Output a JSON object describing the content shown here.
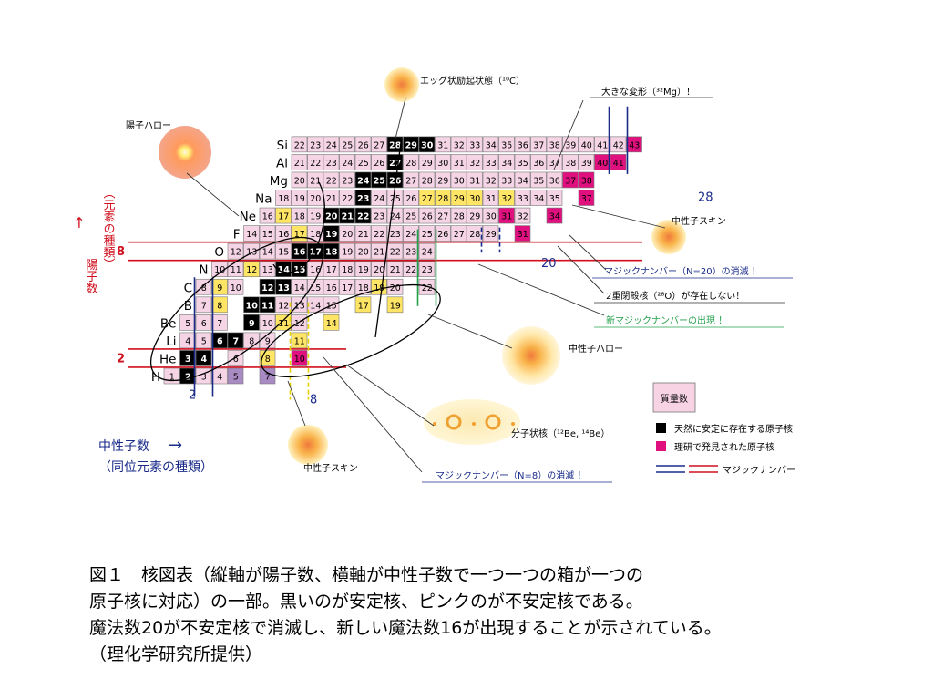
{
  "axes": {
    "proton": {
      "label_line1": "陽子数",
      "label_arrow": "→",
      "label_line2": "（元素の種類）"
    },
    "neutron": {
      "label_line1": "中性子数",
      "label_arrow": "→",
      "label_line2": "（同位元素の種類）"
    }
  },
  "elements": [
    {
      "symbol": "H",
      "z": 1,
      "cells": [
        {
          "n": 0,
          "label": "1",
          "s": "pink"
        },
        {
          "n": 1,
          "label": "2",
          "s": "black"
        },
        {
          "n": 2,
          "label": "3",
          "s": "pink"
        },
        {
          "n": 3,
          "label": "4",
          "s": "pink"
        },
        {
          "n": 4,
          "label": "5",
          "s": "purple"
        },
        {
          "n": 6,
          "label": "7",
          "s": "purple"
        }
      ]
    },
    {
      "symbol": "He",
      "z": 2,
      "cells": [
        {
          "n": 1,
          "label": "3",
          "s": "black"
        },
        {
          "n": 2,
          "label": "4",
          "s": "black"
        },
        {
          "n": 4,
          "label": "6",
          "s": "pink"
        },
        {
          "n": 6,
          "label": "8",
          "s": "yellow"
        },
        {
          "n": 8,
          "label": "10",
          "s": "magenta"
        }
      ]
    },
    {
      "symbol": "Li",
      "z": 3,
      "cells": [
        {
          "n": 1,
          "label": "4",
          "s": "pink"
        },
        {
          "n": 2,
          "label": "5",
          "s": "pink"
        },
        {
          "n": 3,
          "label": "6",
          "s": "black"
        },
        {
          "n": 4,
          "label": "7",
          "s": "black"
        },
        {
          "n": 5,
          "label": "8",
          "s": "pink"
        },
        {
          "n": 6,
          "label": "9",
          "s": "pink"
        },
        {
          "n": 8,
          "label": "11",
          "s": "yellow"
        }
      ]
    },
    {
      "symbol": "Be",
      "z": 4,
      "cells": [
        {
          "n": 1,
          "label": "5",
          "s": "pink"
        },
        {
          "n": 2,
          "label": "6",
          "s": "pink"
        },
        {
          "n": 3,
          "label": "7",
          "s": "pink"
        },
        {
          "n": 5,
          "label": "9",
          "s": "black"
        },
        {
          "n": 6,
          "label": "10",
          "s": "pink"
        },
        {
          "n": 7,
          "label": "11",
          "s": "yellow"
        },
        {
          "n": 8,
          "label": "12",
          "s": "pink"
        },
        {
          "n": 10,
          "label": "14",
          "s": "yellow"
        }
      ]
    },
    {
      "symbol": "B",
      "z": 5,
      "cells": [
        {
          "n": 2,
          "label": "7",
          "s": "pink"
        },
        {
          "n": 3,
          "label": "8",
          "s": "yellow"
        },
        {
          "n": 5,
          "label": "10",
          "s": "black"
        },
        {
          "n": 6,
          "label": "11",
          "s": "black"
        },
        {
          "n": 7,
          "label": "12",
          "s": "pink"
        },
        {
          "n": 8,
          "label": "13",
          "s": "pink"
        },
        {
          "n": 9,
          "label": "14",
          "s": "pink"
        },
        {
          "n": 10,
          "label": "15",
          "s": "pink"
        },
        {
          "n": 12,
          "label": "17",
          "s": "yellow"
        },
        {
          "n": 14,
          "label": "19",
          "s": "yellow"
        }
      ]
    },
    {
      "symbol": "C",
      "z": 6,
      "cells": [
        {
          "n": 2,
          "label": "8",
          "s": "pink"
        },
        {
          "n": 3,
          "label": "9",
          "s": "yellow"
        },
        {
          "n": 4,
          "label": "10",
          "s": "pink"
        },
        {
          "n": 6,
          "label": "12",
          "s": "black"
        },
        {
          "n": 7,
          "label": "13",
          "s": "black"
        },
        {
          "n": 8,
          "label": "14",
          "s": "pink"
        },
        {
          "n": 9,
          "label": "15",
          "s": "pink"
        },
        {
          "n": 10,
          "label": "16",
          "s": "pink"
        },
        {
          "n": 11,
          "label": "17",
          "s": "pink"
        },
        {
          "n": 12,
          "label": "18",
          "s": "pink"
        },
        {
          "n": 13,
          "label": "19",
          "s": "yellow"
        },
        {
          "n": 14,
          "label": "20",
          "s": "pink"
        },
        {
          "n": 16,
          "label": "22",
          "s": "pink"
        }
      ]
    },
    {
      "symbol": "N",
      "z": 7,
      "cells": [
        {
          "n": 3,
          "label": "10",
          "s": "pink"
        },
        {
          "n": 4,
          "label": "11",
          "s": "pink"
        },
        {
          "n": 5,
          "label": "12",
          "s": "yellow"
        },
        {
          "n": 6,
          "label": "13",
          "s": "pink"
        },
        {
          "n": 7,
          "label": "14",
          "s": "black"
        },
        {
          "n": 8,
          "label": "15",
          "s": "black"
        },
        {
          "n": 9,
          "label": "16",
          "s": "pink"
        },
        {
          "n": 10,
          "label": "17",
          "s": "pink"
        },
        {
          "n": 11,
          "label": "18",
          "s": "pink"
        },
        {
          "n": 12,
          "label": "19",
          "s": "pink"
        },
        {
          "n": 13,
          "label": "20",
          "s": "pink"
        },
        {
          "n": 14,
          "label": "21",
          "s": "pink"
        },
        {
          "n": 15,
          "label": "22",
          "s": "pink"
        },
        {
          "n": 16,
          "label": "23",
          "s": "pink"
        }
      ]
    },
    {
      "symbol": "O",
      "z": 8,
      "cells": [
        {
          "n": 4,
          "label": "12",
          "s": "pink"
        },
        {
          "n": 5,
          "label": "13",
          "s": "pink"
        },
        {
          "n": 6,
          "label": "14",
          "s": "pink"
        },
        {
          "n": 7,
          "label": "15",
          "s": "pink"
        },
        {
          "n": 8,
          "label": "16",
          "s": "black"
        },
        {
          "n": 9,
          "label": "17",
          "s": "black"
        },
        {
          "n": 10,
          "label": "18",
          "s": "black"
        },
        {
          "n": 11,
          "label": "19",
          "s": "pink"
        },
        {
          "n": 12,
          "label": "20",
          "s": "pink"
        },
        {
          "n": 13,
          "label": "21",
          "s": "pink"
        },
        {
          "n": 14,
          "label": "22",
          "s": "pink"
        },
        {
          "n": 15,
          "label": "23",
          "s": "pink"
        },
        {
          "n": 16,
          "label": "24",
          "s": "pink"
        }
      ]
    },
    {
      "symbol": "F",
      "z": 9,
      "cells": [
        {
          "n": 5,
          "label": "14",
          "s": "pink"
        },
        {
          "n": 6,
          "label": "15",
          "s": "pink"
        },
        {
          "n": 7,
          "label": "16",
          "s": "pink"
        },
        {
          "n": 8,
          "label": "17",
          "s": "yellow"
        },
        {
          "n": 9,
          "label": "18",
          "s": "pink"
        },
        {
          "n": 10,
          "label": "19",
          "s": "black"
        },
        {
          "n": 11,
          "label": "20",
          "s": "pink"
        },
        {
          "n": 12,
          "label": "21",
          "s": "pink"
        },
        {
          "n": 13,
          "label": "22",
          "s": "pink"
        },
        {
          "n": 14,
          "label": "23",
          "s": "pink"
        },
        {
          "n": 15,
          "label": "24",
          "s": "pink"
        },
        {
          "n": 16,
          "label": "25",
          "s": "pink"
        },
        {
          "n": 17,
          "label": "26",
          "s": "pink"
        },
        {
          "n": 18,
          "label": "27",
          "s": "pink"
        },
        {
          "n": 19,
          "label": "28",
          "s": "pink"
        },
        {
          "n": 20,
          "label": "29",
          "s": "pink"
        },
        {
          "n": 22,
          "label": "31",
          "s": "magenta"
        }
      ]
    },
    {
      "symbol": "Ne",
      "z": 10,
      "cells": [
        {
          "n": 6,
          "label": "16",
          "s": "pink"
        },
        {
          "n": 7,
          "label": "17",
          "s": "yellow"
        },
        {
          "n": 8,
          "label": "18",
          "s": "pink"
        },
        {
          "n": 9,
          "label": "19",
          "s": "pink"
        },
        {
          "n": 10,
          "label": "20",
          "s": "black"
        },
        {
          "n": 11,
          "label": "21",
          "s": "black"
        },
        {
          "n": 12,
          "label": "22",
          "s": "black"
        },
        {
          "n": 13,
          "label": "23",
          "s": "pink"
        },
        {
          "n": 14,
          "label": "24",
          "s": "pink"
        },
        {
          "n": 15,
          "label": "25",
          "s": "pink"
        },
        {
          "n": 16,
          "label": "26",
          "s": "pink"
        },
        {
          "n": 17,
          "label": "27",
          "s": "pink"
        },
        {
          "n": 18,
          "label": "28",
          "s": "pink"
        },
        {
          "n": 19,
          "label": "29",
          "s": "pink"
        },
        {
          "n": 20,
          "label": "30",
          "s": "pink"
        },
        {
          "n": 21,
          "label": "31",
          "s": "magenta"
        },
        {
          "n": 22,
          "label": "32",
          "s": "pink"
        },
        {
          "n": 24,
          "label": "34",
          "s": "magenta"
        }
      ]
    },
    {
      "symbol": "Na",
      "z": 11,
      "cells": [
        {
          "n": 7,
          "label": "18",
          "s": "pink"
        },
        {
          "n": 8,
          "label": "19",
          "s": "pink"
        },
        {
          "n": 9,
          "label": "20",
          "s": "pink"
        },
        {
          "n": 10,
          "label": "21",
          "s": "pink"
        },
        {
          "n": 11,
          "label": "22",
          "s": "pink"
        },
        {
          "n": 12,
          "label": "23",
          "s": "black"
        },
        {
          "n": 13,
          "label": "24",
          "s": "pink"
        },
        {
          "n": 14,
          "label": "25",
          "s": "pink"
        },
        {
          "n": 15,
          "label": "26",
          "s": "pink"
        },
        {
          "n": 16,
          "label": "27",
          "s": "yellow"
        },
        {
          "n": 17,
          "label": "28",
          "s": "yellow"
        },
        {
          "n": 18,
          "label": "29",
          "s": "yellow"
        },
        {
          "n": 19,
          "label": "30",
          "s": "yellow"
        },
        {
          "n": 20,
          "label": "31",
          "s": "pink"
        },
        {
          "n": 21,
          "label": "32",
          "s": "yellow"
        },
        {
          "n": 22,
          "label": "33",
          "s": "pink"
        },
        {
          "n": 23,
          "label": "34",
          "s": "pink"
        },
        {
          "n": 24,
          "label": "35",
          "s": "pink"
        },
        {
          "n": 26,
          "label": "37",
          "s": "magenta"
        }
      ]
    },
    {
      "symbol": "Mg",
      "z": 12,
      "cells": [
        {
          "n": 8,
          "label": "20",
          "s": "pink"
        },
        {
          "n": 9,
          "label": "21",
          "s": "pink"
        },
        {
          "n": 10,
          "label": "22",
          "s": "pink"
        },
        {
          "n": 11,
          "label": "23",
          "s": "pink"
        },
        {
          "n": 12,
          "label": "24",
          "s": "black"
        },
        {
          "n": 13,
          "label": "25",
          "s": "black"
        },
        {
          "n": 14,
          "label": "26",
          "s": "black"
        },
        {
          "n": 15,
          "label": "27",
          "s": "pink"
        },
        {
          "n": 16,
          "label": "28",
          "s": "pink"
        },
        {
          "n": 17,
          "label": "29",
          "s": "pink"
        },
        {
          "n": 18,
          "label": "30",
          "s": "pink"
        },
        {
          "n": 19,
          "label": "31",
          "s": "pink"
        },
        {
          "n": 20,
          "label": "32",
          "s": "pink"
        },
        {
          "n": 21,
          "label": "33",
          "s": "pink"
        },
        {
          "n": 22,
          "label": "34",
          "s": "pink"
        },
        {
          "n": 23,
          "label": "35",
          "s": "pink"
        },
        {
          "n": 24,
          "label": "36",
          "s": "pink"
        },
        {
          "n": 25,
          "label": "37",
          "s": "magenta"
        },
        {
          "n": 26,
          "label": "38",
          "s": "magenta"
        }
      ]
    },
    {
      "symbol": "Al",
      "z": 13,
      "cells": [
        {
          "n": 8,
          "label": "21",
          "s": "pink"
        },
        {
          "n": 9,
          "label": "22",
          "s": "pink"
        },
        {
          "n": 10,
          "label": "23",
          "s": "pink"
        },
        {
          "n": 11,
          "label": "24",
          "s": "pink"
        },
        {
          "n": 12,
          "label": "25",
          "s": "pink"
        },
        {
          "n": 13,
          "label": "26",
          "s": "pink"
        },
        {
          "n": 14,
          "label": "27",
          "s": "black"
        },
        {
          "n": 15,
          "label": "28",
          "s": "pink"
        },
        {
          "n": 16,
          "label": "29",
          "s": "pink"
        },
        {
          "n": 17,
          "label": "30",
          "s": "pink"
        },
        {
          "n": 18,
          "label": "31",
          "s": "pink"
        },
        {
          "n": 19,
          "label": "32",
          "s": "pink"
        },
        {
          "n": 20,
          "label": "33",
          "s": "pink"
        },
        {
          "n": 21,
          "label": "34",
          "s": "pink"
        },
        {
          "n": 22,
          "label": "35",
          "s": "pink"
        },
        {
          "n": 23,
          "label": "36",
          "s": "pink"
        },
        {
          "n": 24,
          "label": "37",
          "s": "pink"
        },
        {
          "n": 25,
          "label": "38",
          "s": "pink"
        },
        {
          "n": 26,
          "label": "39",
          "s": "pink"
        },
        {
          "n": 27,
          "label": "40",
          "s": "magenta"
        },
        {
          "n": 28,
          "label": "41",
          "s": "magenta"
        }
      ]
    },
    {
      "symbol": "Si",
      "z": 14,
      "cells": [
        {
          "n": 8,
          "label": "22",
          "s": "pink"
        },
        {
          "n": 9,
          "label": "23",
          "s": "pink"
        },
        {
          "n": 10,
          "label": "24",
          "s": "pink"
        },
        {
          "n": 11,
          "label": "25",
          "s": "pink"
        },
        {
          "n": 12,
          "label": "26",
          "s": "pink"
        },
        {
          "n": 13,
          "label": "27",
          "s": "pink"
        },
        {
          "n": 14,
          "label": "28",
          "s": "black"
        },
        {
          "n": 15,
          "label": "29",
          "s": "black"
        },
        {
          "n": 16,
          "label": "30",
          "s": "black"
        },
        {
          "n": 17,
          "label": "31",
          "s": "pink"
        },
        {
          "n": 18,
          "label": "32",
          "s": "pink"
        },
        {
          "n": 19,
          "label": "33",
          "s": "pink"
        },
        {
          "n": 20,
          "label": "34",
          "s": "pink"
        },
        {
          "n": 21,
          "label": "35",
          "s": "pink"
        },
        {
          "n": 22,
          "label": "36",
          "s": "pink"
        },
        {
          "n": 23,
          "label": "37",
          "s": "pink"
        },
        {
          "n": 24,
          "label": "38",
          "s": "pink"
        },
        {
          "n": 25,
          "label": "39",
          "s": "pink"
        },
        {
          "n": 26,
          "label": "40",
          "s": "pink"
        },
        {
          "n": 27,
          "label": "41",
          "s": "pink"
        },
        {
          "n": 28,
          "label": "42",
          "s": "pink"
        },
        {
          "n": 29,
          "label": "43",
          "s": "magenta"
        }
      ]
    }
  ],
  "magic_numbers": {
    "proton": [
      {
        "value": 2,
        "label": "2"
      },
      {
        "value": 8,
        "label": "8"
      }
    ],
    "neutron": [
      {
        "value": 2,
        "label": "2"
      },
      {
        "value": 8,
        "label": "8",
        "vanished": true
      },
      {
        "value": 20,
        "label": "20",
        "vanished": true
      },
      {
        "value": 16,
        "label": "",
        "new": true
      },
      {
        "value": 28,
        "label": "28"
      }
    ]
  },
  "annotations": {
    "proton_halo": "陽子ハロー",
    "egg_state": "エッグ状励起状態（¹⁰C）",
    "large_deformation": "大きな変形（³²Mg）！",
    "neutron_skin_right": "中性子スキン",
    "magic_n20_vanish": "マジックナンバー（N=20）の消滅 ！",
    "no_double_closed": "2重閉殻核（²⁸O）が存在しない！",
    "new_magic": "新マジックナンバーの出現 ！",
    "neutron_halo": "中性子ハロー",
    "molecular": "分子状核（¹²Be, ¹⁴Be）",
    "neutron_skin_bottom": "中性子スキン",
    "magic_n8_vanish": "マジックナンバー（N=8）の消滅 ！"
  },
  "legend": {
    "title": "質量数",
    "stable": "天然に安定に存在する原子核",
    "riken": "理研で発見された原子核",
    "magic": "マジックナンバー"
  },
  "colors": {
    "pink": "#f5d5e5",
    "black": "#000000",
    "yellow": "#ffe566",
    "magenta": "#e0117f",
    "purple": "#a98bc4",
    "blue_line": "#1a2b8a",
    "red_line": "#d0101e",
    "green_line": "#22a04b"
  },
  "caption": [
    "図１　核図表（縦軸が陽子数、横軸が中性子数で一つ一つの箱が一つの",
    "原子核に対応）の一部。黒いのが安定核、ピンクのが不安定核である。",
    "魔法数20が不安定核で消滅し、新しい魔法数16が出現することが示されている。",
    "（理化学研究所提供）"
  ]
}
